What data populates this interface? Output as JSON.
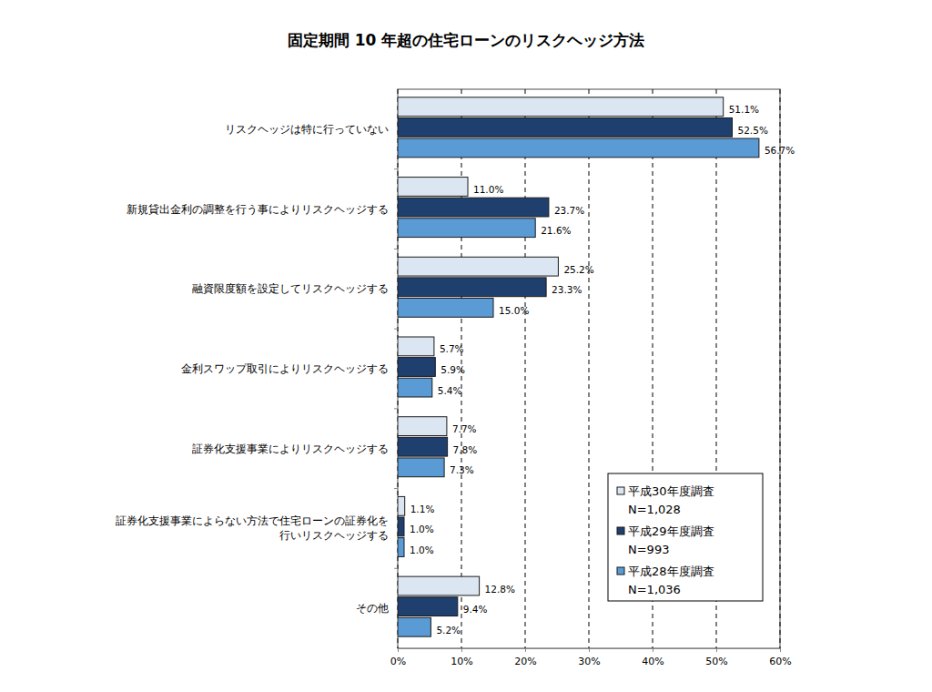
{
  "chart_data": {
    "type": "bar",
    "orientation": "horizontal",
    "title": "固定期間 10 年超の住宅ローンのリスクヘッジ方法",
    "categories": [
      "リスクヘッジは特に行っていない",
      "新規貸出金利の調整を行う事によりリスクヘッジする",
      "融資限度額を設定してリスクヘッジする",
      "金利スワップ取引によりリスクヘッジする",
      "証券化支援事業によりリスクヘッジする",
      "証券化支援事業によらない方法で住宅ローンの証券化を\n行いリスクヘッジする",
      "その他"
    ],
    "series": [
      {
        "name": "平成30年度調査",
        "note": "N=1,028",
        "color": "#dce6f2",
        "values": [
          51.1,
          11.0,
          25.2,
          5.7,
          7.7,
          1.1,
          12.8
        ],
        "value_labels": [
          "51.1%",
          "11.0%",
          "25.2%",
          "5.7%",
          "7.7%",
          "1.1%",
          "12.8%"
        ]
      },
      {
        "name": "平成29年度調査",
        "note": "N=993",
        "color": "#1f3f6e",
        "values": [
          52.5,
          23.7,
          23.3,
          5.9,
          7.8,
          1.0,
          9.4
        ],
        "value_labels": [
          "52.5%",
          "23.7%",
          "23.3%",
          "5.9%",
          "7.8%",
          "1.0%",
          "9.4%"
        ]
      },
      {
        "name": "平成28年度調査",
        "note": "N=1,036",
        "color": "#5b9bd5",
        "values": [
          56.7,
          21.6,
          15.0,
          5.4,
          7.3,
          1.0,
          5.2
        ],
        "value_labels": [
          "56.7%",
          "21.6%",
          "15.0%",
          "5.4%",
          "7.3%",
          "1.0%",
          "5.2%"
        ]
      }
    ],
    "xlim": [
      0,
      60
    ],
    "xticks": [
      {
        "value": 0,
        "label": "0%"
      },
      {
        "value": 10,
        "label": "10%"
      },
      {
        "value": 20,
        "label": "20%"
      },
      {
        "value": 30,
        "label": "30%"
      },
      {
        "value": 40,
        "label": "40%"
      },
      {
        "value": 50,
        "label": "50%"
      },
      {
        "value": 60,
        "label": "60%"
      }
    ],
    "grid": true,
    "legend": "lower right",
    "data_labels": true
  }
}
